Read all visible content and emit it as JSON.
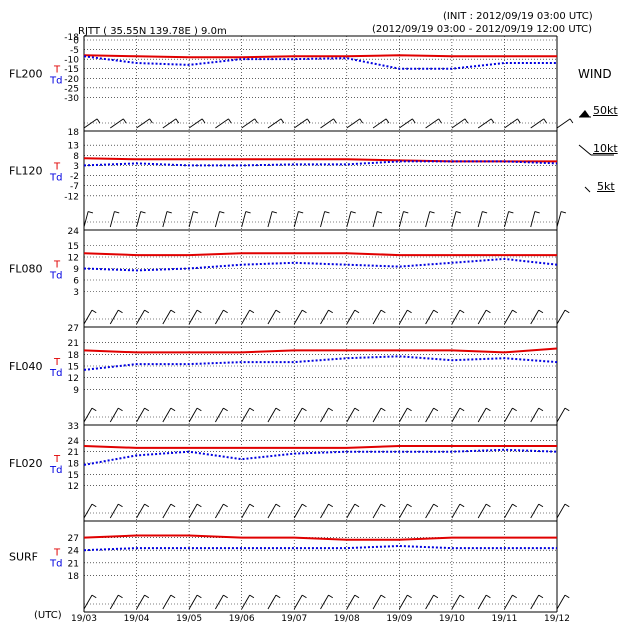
{
  "header": {
    "station": "RJTT ( 35.55N 139.78E )  9.0m",
    "init": "(INIT : 2012/09/19 03:00 UTC)",
    "range": "(2012/09/19 03:00 - 2012/09/19 12:00 UTC)"
  },
  "legend": {
    "title": "WIND",
    "items": [
      {
        "label": "50kt"
      },
      {
        "label": "10kt"
      },
      {
        "label": "5kt"
      }
    ]
  },
  "labels": {
    "t": "T",
    "td": "Td",
    "utc": "(UTC)"
  },
  "colors": {
    "t": "#e00000",
    "td": "#0000e0",
    "grid": "#000000"
  },
  "chart_data": {
    "type": "line",
    "x": [
      "19/03",
      "19/04",
      "19/05",
      "19/06",
      "19/07",
      "19/08",
      "19/09",
      "19/10",
      "19/11",
      "19/12"
    ],
    "panels": [
      {
        "name": "FL200",
        "ticks": [
          0,
          -5,
          -10,
          -15,
          -20,
          -25,
          -30
        ],
        "top_tick": "-18",
        "ylim": [
          -35,
          0
        ],
        "series": [
          {
            "name": "T",
            "values": [
              -8,
              -8.5,
              -9,
              -9,
              -8.5,
              -8.5,
              -8,
              -8.5,
              -8.5,
              -8.5
            ]
          },
          {
            "name": "Td",
            "values": [
              -8.5,
              -12,
              -13,
              -10,
              -10,
              -9.5,
              -15,
              -15,
              -12,
              -12
            ]
          }
        ]
      },
      {
        "name": "FL120",
        "ticks": [
          13,
          8,
          3,
          -2,
          -7,
          -12
        ],
        "top_tick": "18",
        "ylim": [
          -17,
          18
        ],
        "series": [
          {
            "name": "T",
            "values": [
              6.5,
              6,
              6,
              6,
              6,
              6,
              5.5,
              5,
              5,
              5
            ]
          },
          {
            "name": "Td",
            "values": [
              3,
              4,
              3,
              3,
              3.5,
              3.5,
              5,
              5,
              5,
              4
            ]
          }
        ]
      },
      {
        "name": "FL080",
        "ticks": [
          15,
          12,
          9,
          6,
          3
        ],
        "top_tick": "24",
        "ylim": [
          0,
          18
        ],
        "series": [
          {
            "name": "T",
            "values": [
              13,
              12.5,
              12.5,
              13,
              13,
              13,
              12.5,
              12.5,
              12.5,
              12.5
            ]
          },
          {
            "name": "Td",
            "values": [
              9,
              8.5,
              9,
              10,
              10.5,
              10,
              9.5,
              10.5,
              11.5,
              10
            ]
          }
        ]
      },
      {
        "name": "FL040",
        "ticks": [
          21,
          18,
          15,
          12,
          9
        ],
        "top_tick": "27",
        "ylim": [
          6,
          24
        ],
        "series": [
          {
            "name": "T",
            "values": [
              19,
              18.5,
              18.5,
              18.5,
              19,
              19,
              19,
              19,
              18.5,
              19.5
            ]
          },
          {
            "name": "Td",
            "values": [
              14,
              15.5,
              15.5,
              16,
              16,
              17,
              17.5,
              16.5,
              17,
              16
            ]
          }
        ]
      },
      {
        "name": "FL020",
        "ticks": [
          24,
          21,
          18,
          15,
          12
        ],
        "top_tick": "33",
        "ylim": [
          9,
          27
        ],
        "series": [
          {
            "name": "T",
            "values": [
              22.5,
              22,
              22,
              22,
              22,
              22,
              22.5,
              22.5,
              22.5,
              22.5
            ]
          },
          {
            "name": "Td",
            "values": [
              17.5,
              20,
              21,
              19,
              20.5,
              21,
              21,
              21,
              21.5,
              21
            ]
          }
        ]
      },
      {
        "name": "SURF",
        "ticks": [
          27,
          24,
          21,
          18
        ],
        "top_tick": "",
        "ylim": [
          15,
          30
        ],
        "series": [
          {
            "name": "T",
            "values": [
              27,
              27.5,
              27.5,
              27,
              27,
              26.5,
              26.5,
              27,
              27,
              27
            ]
          },
          {
            "name": "Td",
            "values": [
              24,
              24.5,
              24.5,
              24.5,
              24.5,
              24.5,
              25,
              24.5,
              24.5,
              24.5
            ]
          }
        ]
      }
    ],
    "grid": true
  }
}
